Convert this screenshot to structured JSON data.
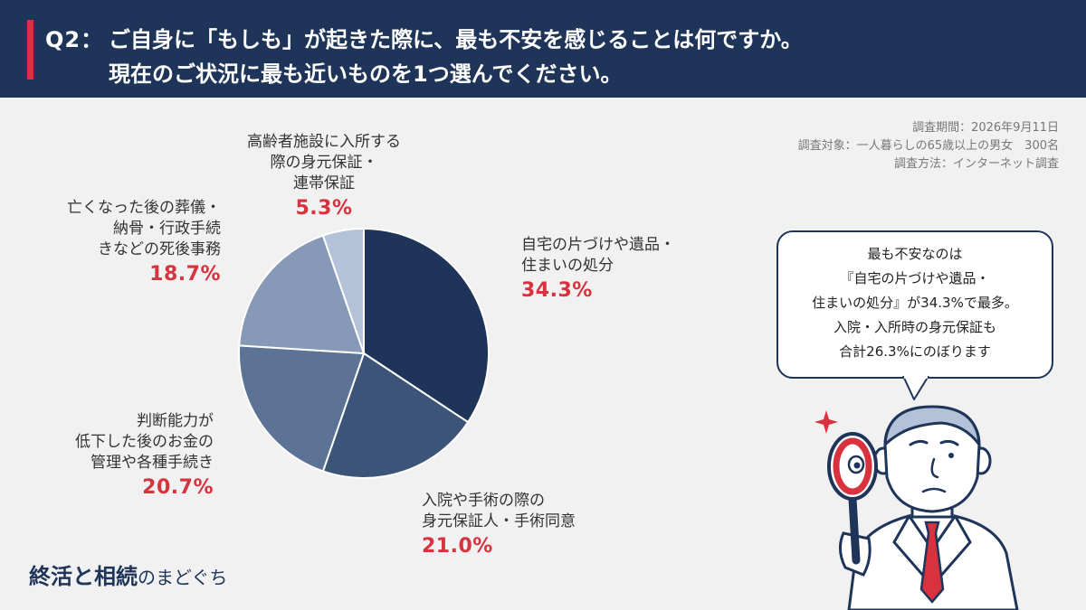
{
  "header": {
    "question_label": "Q2：",
    "question_line1": "ご自身に「もしも」が起きた際に、最も不安を感じることは何ですか。",
    "question_line2": "現在のご状況に最も近いものを1つ選んでください。"
  },
  "survey_info": {
    "period": "調査期間：2026年9月11日",
    "target": "調査対象：一人暮らしの65歳以上の男女　300名",
    "method": "調査方法：インターネット調査"
  },
  "chart_data": {
    "type": "pie",
    "start_angle_deg": 0,
    "direction": "clockwise",
    "slices": [
      {
        "label_lines": [
          "自宅の片づけや遺品・",
          "住まいの処分"
        ],
        "value": 34.3,
        "display": "34.3%",
        "color": "#1e3458"
      },
      {
        "label_lines": [
          "入院や手術の際の",
          "身元保証人・手術同意"
        ],
        "value": 21.0,
        "display": "21.0%",
        "color": "#3d5479"
      },
      {
        "label_lines": [
          "判断能力が",
          "低下した後のお金の",
          "管理や各種手続き"
        ],
        "value": 20.7,
        "display": "20.7%",
        "color": "#5c7396"
      },
      {
        "label_lines": [
          "亡くなった後の葬儀・",
          "納骨・行政手続",
          "きなどの死後事務"
        ],
        "value": 18.7,
        "display": "18.7%",
        "color": "#8699b6"
      },
      {
        "label_lines": [
          "高齢者施設に入所する",
          "際の身元保証・",
          "連帯保証"
        ],
        "value": 5.3,
        "display": "5.3%",
        "color": "#b3c2d9"
      }
    ]
  },
  "callout": {
    "lines": [
      "最も不安なのは",
      "『自宅の片づけや遺品・",
      "住まいの処分』が34.3%で最多。",
      "入院・入所時の身元保証も",
      "合計26.3%にのぼります"
    ]
  },
  "logo": {
    "main": "終活と相続",
    "suffix": "のまどぐち"
  },
  "colors": {
    "header_bg": "#1e3458",
    "accent_red": "#d8323e",
    "background": "#f1f1f1"
  }
}
